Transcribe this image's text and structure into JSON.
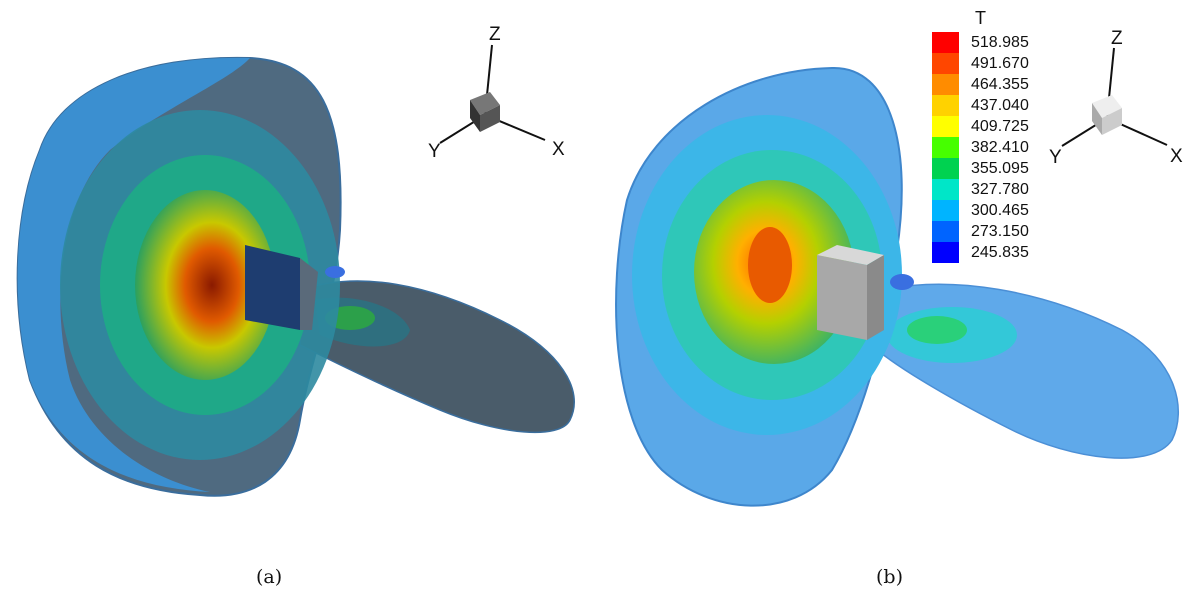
{
  "captions": {
    "a": "(a)",
    "b": "(b)"
  },
  "axes_triad": {
    "x": "X",
    "y": "Y",
    "z": "Z"
  },
  "legend": {
    "title": "T",
    "levels": [
      {
        "value": "518.985",
        "color": "#ff0000"
      },
      {
        "value": "491.670",
        "color": "#ff4600"
      },
      {
        "value": "464.355",
        "color": "#ff8c00"
      },
      {
        "value": "437.040",
        "color": "#ffd200"
      },
      {
        "value": "409.725",
        "color": "#ffff00"
      },
      {
        "value": "382.410",
        "color": "#46ff00"
      },
      {
        "value": "355.095",
        "color": "#00d250"
      },
      {
        "value": "327.780",
        "color": "#00e6c8"
      },
      {
        "value": "300.465",
        "color": "#00b4ff"
      },
      {
        "value": "273.150",
        "color": "#0064ff"
      },
      {
        "value": "245.835",
        "color": "#0000ff"
      }
    ]
  }
}
